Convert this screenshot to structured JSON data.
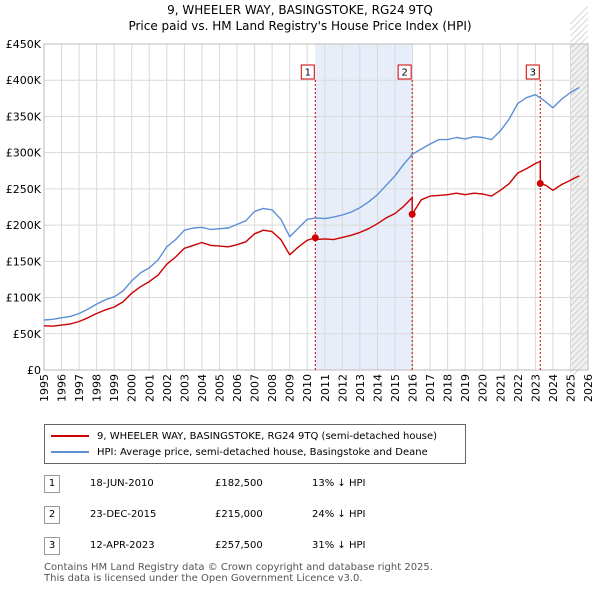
{
  "title_line1": "9, WHEELER WAY, BASINGSTOKE, RG24 9TQ",
  "title_line2": "Price paid vs. HM Land Registry's House Price Index (HPI)",
  "chart_data": {
    "type": "line",
    "title": "9, WHEELER WAY, BASINGSTOKE, RG24 9TQ",
    "subtitle": "Price paid vs. HM Land Registry's House Price Index (HPI)",
    "xlabel": "",
    "ylabel": "",
    "xlim": [
      1995,
      2026
    ],
    "ylim": [
      0,
      450000
    ],
    "x_ticks": [
      "1995",
      "1996",
      "1997",
      "1998",
      "1999",
      "2000",
      "2001",
      "2002",
      "2003",
      "2004",
      "2005",
      "2006",
      "2007",
      "2008",
      "2009",
      "2010",
      "2011",
      "2012",
      "2013",
      "2014",
      "2015",
      "2016",
      "2017",
      "2018",
      "2019",
      "2020",
      "2021",
      "2022",
      "2023",
      "2024",
      "2025",
      "2026"
    ],
    "y_ticks": [
      {
        "value": 0,
        "label": "£0"
      },
      {
        "value": 50000,
        "label": "£50K"
      },
      {
        "value": 100000,
        "label": "£100K"
      },
      {
        "value": 150000,
        "label": "£150K"
      },
      {
        "value": 200000,
        "label": "£200K"
      },
      {
        "value": 250000,
        "label": "£250K"
      },
      {
        "value": 300000,
        "label": "£300K"
      },
      {
        "value": 350000,
        "label": "£350K"
      },
      {
        "value": 400000,
        "label": "£400K"
      },
      {
        "value": 450000,
        "label": "£450K"
      }
    ],
    "grid": true,
    "shaded_ranges": [
      [
        2010.46,
        2015.98
      ],
      [
        2025.0,
        2026.0
      ]
    ],
    "series": [
      {
        "name": "9, WHEELER WAY, BASINGSTOKE, RG24 9TQ (semi-detached house)",
        "color": "#cc0000",
        "x": [
          1995.0,
          1995.5,
          1996.0,
          1996.5,
          1997.0,
          1997.5,
          1998.0,
          1998.5,
          1999.0,
          1999.5,
          2000.0,
          2000.5,
          2001.0,
          2001.5,
          2002.0,
          2002.5,
          2003.0,
          2003.5,
          2004.0,
          2004.5,
          2005.0,
          2005.5,
          2006.0,
          2006.5,
          2007.0,
          2007.5,
          2008.0,
          2008.5,
          2009.0,
          2009.5,
          2010.0,
          2010.46,
          2010.46,
          2011.0,
          2011.5,
          2012.0,
          2012.5,
          2013.0,
          2013.5,
          2014.0,
          2014.5,
          2015.0,
          2015.5,
          2015.98,
          2015.98,
          2016.5,
          2017.0,
          2017.5,
          2018.0,
          2018.5,
          2019.0,
          2019.5,
          2020.0,
          2020.5,
          2021.0,
          2021.5,
          2022.0,
          2022.5,
          2023.0,
          2023.28,
          2023.28,
          2023.6,
          2024.0,
          2024.5,
          2025.0,
          2025.5
        ],
        "values": [
          61000,
          60500,
          62000,
          63500,
          67000,
          72000,
          78000,
          83000,
          87000,
          94000,
          106000,
          115000,
          122000,
          131000,
          146000,
          156000,
          168000,
          172000,
          176000,
          172000,
          171000,
          170000,
          173000,
          177000,
          188000,
          193000,
          191000,
          180000,
          159000,
          170000,
          179000,
          182500,
          180000,
          181000,
          180000,
          183000,
          186000,
          190000,
          195000,
          202000,
          210000,
          216000,
          226000,
          238000,
          215000,
          235000,
          240000,
          241000,
          242000,
          244000,
          242000,
          244000,
          243000,
          240000,
          248000,
          257000,
          272000,
          278000,
          285000,
          288000,
          257500,
          255000,
          248000,
          256000,
          262000,
          268000
        ]
      },
      {
        "name": "HPI: Average price, semi-detached house, Basingstoke and Deane",
        "color": "#5b8fd6",
        "x": [
          1995.0,
          1995.5,
          1996.0,
          1996.5,
          1997.0,
          1997.5,
          1998.0,
          1998.5,
          1999.0,
          1999.5,
          2000.0,
          2000.5,
          2001.0,
          2001.5,
          2002.0,
          2002.5,
          2003.0,
          2003.5,
          2004.0,
          2004.5,
          2005.0,
          2005.5,
          2006.0,
          2006.5,
          2007.0,
          2007.5,
          2008.0,
          2008.5,
          2009.0,
          2009.5,
          2010.0,
          2010.5,
          2011.0,
          2011.5,
          2012.0,
          2012.5,
          2013.0,
          2013.5,
          2014.0,
          2014.5,
          2015.0,
          2015.5,
          2016.0,
          2016.5,
          2017.0,
          2017.5,
          2018.0,
          2018.5,
          2019.0,
          2019.5,
          2020.0,
          2020.5,
          2021.0,
          2021.5,
          2022.0,
          2022.5,
          2023.0,
          2023.5,
          2024.0,
          2024.5,
          2025.0,
          2025.5
        ],
        "values": [
          69000,
          70000,
          72000,
          74000,
          78000,
          84000,
          91000,
          97000,
          101000,
          109000,
          123000,
          134000,
          141000,
          152000,
          170000,
          180000,
          193000,
          196000,
          197000,
          194000,
          195000,
          196000,
          201000,
          206000,
          219000,
          223000,
          221000,
          208000,
          184000,
          196000,
          208000,
          210000,
          209000,
          211000,
          214000,
          218000,
          224000,
          232000,
          242000,
          255000,
          268000,
          284000,
          298000,
          305000,
          312000,
          318000,
          318000,
          321000,
          319000,
          322000,
          321000,
          318000,
          330000,
          346000,
          368000,
          376000,
          380000,
          372000,
          362000,
          374000,
          383000,
          390000
        ]
      }
    ],
    "sale_markers": [
      {
        "label": "1",
        "x": 2010.46,
        "value": 182500
      },
      {
        "label": "2",
        "x": 2015.98,
        "value": 215000
      },
      {
        "label": "3",
        "x": 2023.28,
        "value": 257500
      }
    ]
  },
  "legend": {
    "property_label": "9, WHEELER WAY, BASINGSTOKE, RG24 9TQ (semi-detached house)",
    "hpi_label": "HPI: Average price, semi-detached house, Basingstoke and Deane"
  },
  "transactions": [
    {
      "num": "1",
      "date": "18-JUN-2010",
      "price": "£182,500",
      "hpi": "13% ↓ HPI"
    },
    {
      "num": "2",
      "date": "23-DEC-2015",
      "price": "£215,000",
      "hpi": "24% ↓ HPI"
    },
    {
      "num": "3",
      "date": "12-APR-2023",
      "price": "£257,500",
      "hpi": "31% ↓ HPI"
    }
  ],
  "footer": {
    "line1": "Contains HM Land Registry data © Crown copyright and database right 2025.",
    "line2": "This data is licensed under the Open Government Licence v3.0."
  }
}
